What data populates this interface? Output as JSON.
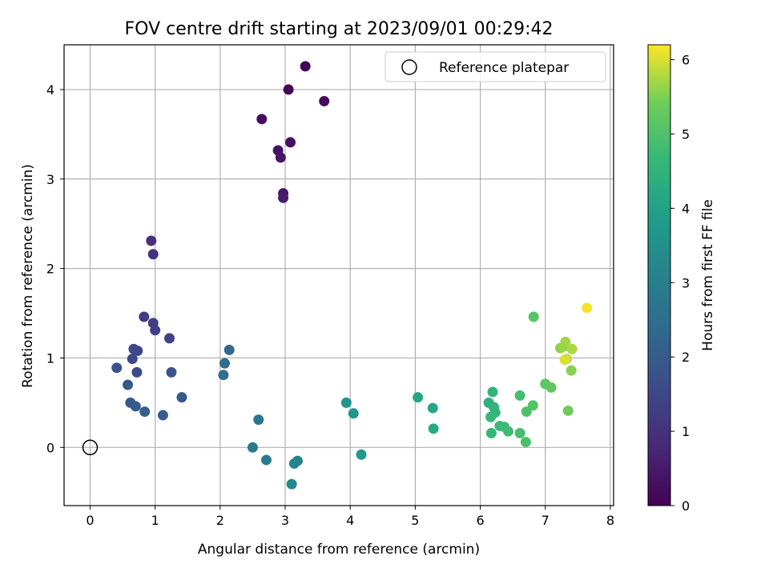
{
  "chart_data": {
    "type": "scatter",
    "title": "FOV centre drift starting at 2023/09/01 00:29:42",
    "xlabel": "Angular distance from reference (arcmin)",
    "ylabel": "Rotation from reference (arcmin)",
    "xlim": [
      -0.4,
      8.05
    ],
    "ylim": [
      -0.65,
      4.5
    ],
    "xticks": [
      "0",
      "1",
      "2",
      "3",
      "4",
      "5",
      "6",
      "7",
      "8"
    ],
    "yticks": [
      "0",
      "1",
      "2",
      "3",
      "4"
    ],
    "grid": true,
    "legend": {
      "placement": "top-right",
      "entries": [
        "Reference platepar"
      ]
    },
    "reference_point": {
      "x": 0,
      "y": 0
    },
    "colorbar": {
      "label": "Hours from first FF file",
      "colormap": "viridis",
      "range": [
        0,
        6.2
      ],
      "ticks": [
        "0",
        "1",
        "2",
        "3",
        "4",
        "5",
        "6"
      ]
    },
    "points": [
      {
        "x": 3.31,
        "y": 4.26,
        "c": 0.05
      },
      {
        "x": 3.05,
        "y": 4.0,
        "c": 0.1
      },
      {
        "x": 3.6,
        "y": 3.87,
        "c": 0.15
      },
      {
        "x": 2.64,
        "y": 3.67,
        "c": 0.25
      },
      {
        "x": 3.08,
        "y": 3.41,
        "c": 0.3
      },
      {
        "x": 2.89,
        "y": 3.32,
        "c": 0.35
      },
      {
        "x": 2.93,
        "y": 3.24,
        "c": 0.4
      },
      {
        "x": 2.97,
        "y": 2.84,
        "c": 0.45
      },
      {
        "x": 2.97,
        "y": 2.79,
        "c": 0.5
      },
      {
        "x": 0.94,
        "y": 2.31,
        "c": 0.95
      },
      {
        "x": 0.97,
        "y": 2.16,
        "c": 1.0
      },
      {
        "x": 0.83,
        "y": 1.46,
        "c": 1.25
      },
      {
        "x": 0.97,
        "y": 1.39,
        "c": 1.3
      },
      {
        "x": 1.0,
        "y": 1.31,
        "c": 1.35
      },
      {
        "x": 1.22,
        "y": 1.22,
        "c": 1.4
      },
      {
        "x": 0.73,
        "y": 1.08,
        "c": 1.45
      },
      {
        "x": 0.67,
        "y": 1.1,
        "c": 1.5
      },
      {
        "x": 0.65,
        "y": 0.99,
        "c": 1.55
      },
      {
        "x": 0.72,
        "y": 0.84,
        "c": 1.6
      },
      {
        "x": 0.41,
        "y": 0.89,
        "c": 1.75
      },
      {
        "x": 1.25,
        "y": 0.84,
        "c": 1.85
      },
      {
        "x": 0.58,
        "y": 0.7,
        "c": 1.9
      },
      {
        "x": 1.41,
        "y": 0.56,
        "c": 1.95
      },
      {
        "x": 0.62,
        "y": 0.5,
        "c": 1.95
      },
      {
        "x": 0.7,
        "y": 0.46,
        "c": 2.0
      },
      {
        "x": 0.84,
        "y": 0.4,
        "c": 2.05
      },
      {
        "x": 1.12,
        "y": 0.36,
        "c": 2.05
      },
      {
        "x": 2.14,
        "y": 1.09,
        "c": 2.4
      },
      {
        "x": 2.07,
        "y": 0.94,
        "c": 2.45
      },
      {
        "x": 2.05,
        "y": 0.81,
        "c": 2.5
      },
      {
        "x": 2.59,
        "y": 0.31,
        "c": 2.75
      },
      {
        "x": 2.5,
        "y": 0.0,
        "c": 2.85
      },
      {
        "x": 2.71,
        "y": -0.14,
        "c": 2.9
      },
      {
        "x": 3.19,
        "y": -0.15,
        "c": 3.15
      },
      {
        "x": 3.14,
        "y": -0.18,
        "c": 3.2
      },
      {
        "x": 3.1,
        "y": -0.41,
        "c": 3.25
      },
      {
        "x": 3.94,
        "y": 0.5,
        "c": 3.6
      },
      {
        "x": 4.05,
        "y": 0.38,
        "c": 3.65
      },
      {
        "x": 4.17,
        "y": -0.08,
        "c": 3.75
      },
      {
        "x": 5.04,
        "y": 0.56,
        "c": 4.1
      },
      {
        "x": 5.27,
        "y": 0.44,
        "c": 4.15
      },
      {
        "x": 5.28,
        "y": 0.21,
        "c": 4.2
      },
      {
        "x": 6.13,
        "y": 0.5,
        "c": 4.45
      },
      {
        "x": 6.19,
        "y": 0.62,
        "c": 4.5
      },
      {
        "x": 6.21,
        "y": 0.45,
        "c": 4.55
      },
      {
        "x": 6.23,
        "y": 0.39,
        "c": 4.6
      },
      {
        "x": 6.16,
        "y": 0.34,
        "c": 4.65
      },
      {
        "x": 6.17,
        "y": 0.16,
        "c": 4.65
      },
      {
        "x": 6.3,
        "y": 0.24,
        "c": 4.7
      },
      {
        "x": 6.37,
        "y": 0.23,
        "c": 4.75
      },
      {
        "x": 6.43,
        "y": 0.18,
        "c": 4.8
      },
      {
        "x": 6.61,
        "y": 0.58,
        "c": 4.85
      },
      {
        "x": 6.61,
        "y": 0.16,
        "c": 4.9
      },
      {
        "x": 6.7,
        "y": 0.06,
        "c": 4.95
      },
      {
        "x": 6.71,
        "y": 0.4,
        "c": 5.0
      },
      {
        "x": 6.81,
        "y": 0.47,
        "c": 5.05
      },
      {
        "x": 6.82,
        "y": 1.46,
        "c": 5.1
      },
      {
        "x": 7.0,
        "y": 0.71,
        "c": 5.2
      },
      {
        "x": 7.09,
        "y": 0.67,
        "c": 5.25
      },
      {
        "x": 7.35,
        "y": 0.41,
        "c": 5.4
      },
      {
        "x": 7.4,
        "y": 0.86,
        "c": 5.55
      },
      {
        "x": 7.23,
        "y": 1.11,
        "c": 5.6
      },
      {
        "x": 7.29,
        "y": 1.13,
        "c": 5.65
      },
      {
        "x": 7.31,
        "y": 1.18,
        "c": 5.7
      },
      {
        "x": 7.41,
        "y": 1.1,
        "c": 5.75
      },
      {
        "x": 7.33,
        "y": 0.99,
        "c": 5.85
      },
      {
        "x": 7.3,
        "y": 0.98,
        "c": 6.0
      },
      {
        "x": 7.64,
        "y": 1.56,
        "c": 6.15
      }
    ]
  }
}
